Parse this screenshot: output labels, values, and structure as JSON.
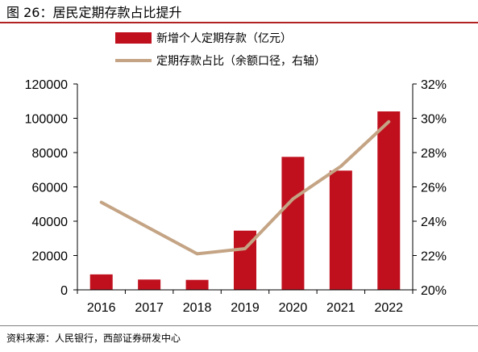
{
  "figure": {
    "title": "图 26：居民定期存款占比提升",
    "source": "资料来源：人民银行，西部证券研发中心"
  },
  "colors": {
    "bar": "#c0101e",
    "line": "#c4a484",
    "header_rule": "#b22222"
  },
  "chart_data": {
    "type": "bar",
    "categories": [
      "2016",
      "2017",
      "2018",
      "2019",
      "2020",
      "2021",
      "2022"
    ],
    "series": [
      {
        "name": "新增个人定期存款（亿元）",
        "type": "bar",
        "axis": "left",
        "values": [
          9000,
          6000,
          5800,
          34500,
          77500,
          69500,
          104000
        ]
      },
      {
        "name": "定期存款占比（余额口径，右轴）",
        "type": "line",
        "axis": "right",
        "values": [
          25.1,
          23.6,
          22.1,
          22.4,
          25.3,
          27.2,
          29.8
        ]
      }
    ],
    "y_left": {
      "min": 0,
      "max": 120000,
      "ticks": [
        "0",
        "20000",
        "40000",
        "60000",
        "80000",
        "100000",
        "120000"
      ]
    },
    "y_right": {
      "min": 20,
      "max": 32,
      "ticks": [
        "20%",
        "22%",
        "24%",
        "26%",
        "28%",
        "30%",
        "32%"
      ]
    },
    "legend_position": "top-center",
    "grid": false
  }
}
